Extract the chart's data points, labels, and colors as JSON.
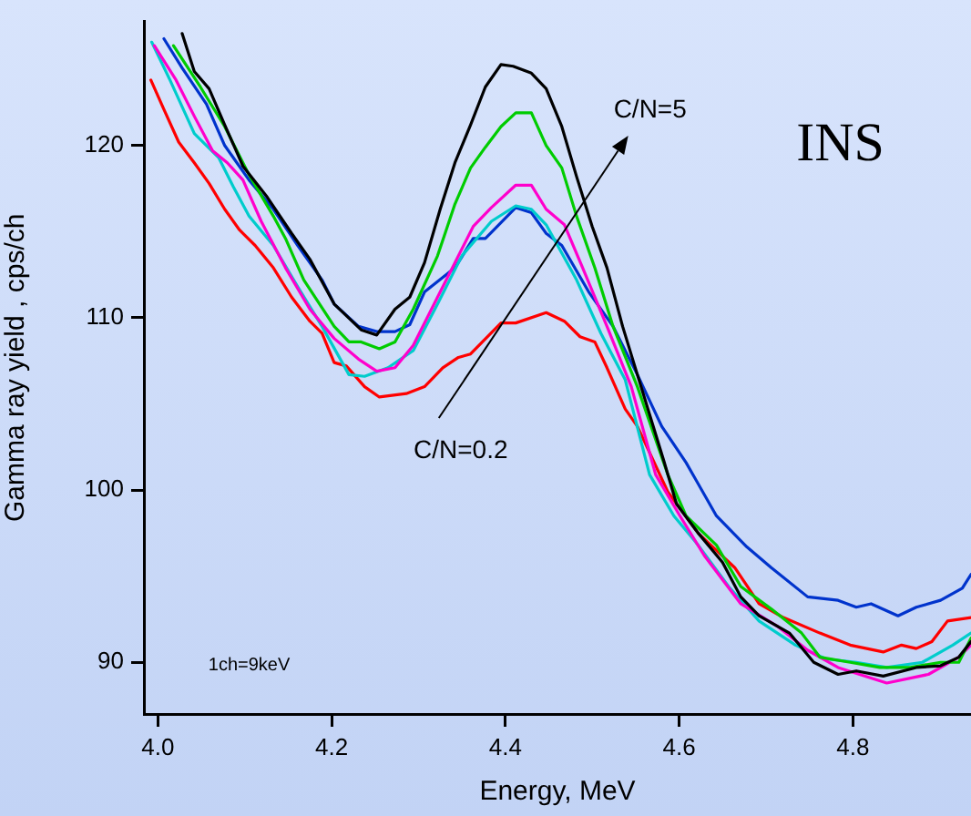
{
  "chart_data": {
    "type": "line",
    "xlabel": "Energy, MeV",
    "ylabel": "Gamma ray yield , cps/ch",
    "xlim": [
      3.984,
      4.936
    ],
    "ylim": [
      87,
      127.2
    ],
    "xticks": [
      {
        "value": 4.0,
        "label": "4.0"
      },
      {
        "value": 4.2,
        "label": "4.2"
      },
      {
        "value": 4.4,
        "label": "4.4"
      },
      {
        "value": 4.6,
        "label": "4.6"
      },
      {
        "value": 4.8,
        "label": "4.8"
      }
    ],
    "yticks": [
      90,
      100,
      110,
      120
    ],
    "annotations": [
      "C/N=5",
      "C/N=0.2",
      "INS",
      "1ch=9keV"
    ],
    "series": [
      {
        "color": "#000000",
        "x": [
          4.028,
          4.042,
          4.059,
          4.077,
          4.098,
          4.126,
          4.154,
          4.175,
          4.203,
          4.234,
          4.252,
          4.273,
          4.29,
          4.307,
          4.325,
          4.342,
          4.36,
          4.377,
          4.395,
          4.409,
          4.43,
          4.447,
          4.465,
          4.482,
          4.5,
          4.517,
          4.535,
          4.552,
          4.583,
          4.597,
          4.622,
          4.65,
          4.671,
          4.692,
          4.727,
          4.755,
          4.783,
          4.804,
          4.835,
          4.873,
          4.901,
          4.922,
          4.936
        ],
        "values": [
          126.5,
          124.3,
          123.3,
          121.2,
          118.8,
          117.0,
          114.9,
          113.4,
          110.8,
          109.3,
          109.0,
          110.5,
          111.2,
          113.2,
          116.3,
          119.0,
          121.2,
          123.4,
          124.7,
          124.6,
          124.2,
          123.3,
          121.1,
          118.2,
          115.3,
          112.9,
          109.5,
          106.7,
          101.6,
          99.2,
          97.5,
          95.8,
          93.8,
          92.7,
          91.7,
          90.0,
          89.3,
          89.5,
          89.2,
          89.7,
          89.8,
          90.3,
          91.2
        ]
      },
      {
        "color": "#00cc00",
        "x": [
          4.018,
          4.049,
          4.077,
          4.105,
          4.133,
          4.147,
          4.168,
          4.203,
          4.22,
          4.234,
          4.255,
          4.273,
          4.294,
          4.322,
          4.342,
          4.36,
          4.377,
          4.395,
          4.412,
          4.43,
          4.447,
          4.465,
          4.482,
          4.503,
          4.524,
          4.552,
          4.587,
          4.608,
          4.643,
          4.671,
          4.706,
          4.741,
          4.762,
          4.797,
          4.831,
          4.866,
          4.901,
          4.922,
          4.936
        ],
        "values": [
          125.8,
          123.4,
          121.1,
          118.3,
          115.9,
          114.6,
          112.2,
          109.5,
          108.6,
          108.6,
          108.2,
          108.6,
          110.5,
          113.6,
          116.6,
          118.7,
          119.9,
          121.1,
          121.9,
          121.9,
          120.0,
          118.7,
          115.9,
          112.9,
          109.5,
          106.0,
          100.9,
          98.5,
          96.8,
          94.4,
          93.1,
          91.7,
          90.3,
          90.0,
          89.7,
          89.7,
          90.0,
          90.0,
          91.4
        ]
      },
      {
        "color": "#ff00cc",
        "x": [
          3.996,
          4.021,
          4.042,
          4.063,
          4.08,
          4.098,
          4.119,
          4.147,
          4.175,
          4.203,
          4.231,
          4.252,
          4.273,
          4.294,
          4.322,
          4.342,
          4.363,
          4.384,
          4.412,
          4.43,
          4.447,
          4.468,
          4.489,
          4.517,
          4.545,
          4.573,
          4.601,
          4.629,
          4.671,
          4.713,
          4.748,
          4.783,
          4.839,
          4.887,
          4.922,
          4.936
        ],
        "values": [
          125.8,
          123.8,
          121.7,
          119.7,
          119.0,
          118.0,
          115.6,
          112.9,
          110.5,
          108.8,
          107.6,
          106.9,
          107.1,
          108.4,
          111.2,
          113.2,
          115.3,
          116.4,
          117.7,
          117.7,
          116.3,
          115.4,
          112.9,
          109.5,
          106.0,
          100.9,
          98.5,
          96.2,
          93.4,
          92.1,
          90.7,
          89.7,
          88.8,
          89.3,
          90.3,
          91.0
        ]
      },
      {
        "color": "#00cccc",
        "x": [
          3.993,
          4.014,
          4.042,
          4.07,
          4.087,
          4.105,
          4.133,
          4.161,
          4.189,
          4.22,
          4.238,
          4.265,
          4.294,
          4.322,
          4.35,
          4.384,
          4.412,
          4.43,
          4.447,
          4.482,
          4.51,
          4.538,
          4.566,
          4.594,
          4.622,
          4.657,
          4.692,
          4.734,
          4.769,
          4.804,
          4.839,
          4.88,
          4.915,
          4.936
        ],
        "values": [
          126.0,
          123.8,
          120.7,
          119.3,
          117.6,
          115.9,
          114.2,
          111.8,
          109.5,
          106.7,
          106.6,
          107.1,
          108.1,
          110.8,
          113.6,
          115.6,
          116.5,
          116.3,
          115.4,
          112.2,
          109.1,
          106.4,
          100.9,
          98.5,
          96.8,
          94.4,
          92.4,
          91.0,
          90.2,
          90.0,
          89.7,
          90.0,
          91.0,
          91.7
        ]
      },
      {
        "color": "#0033cc",
        "x": [
          4.007,
          4.028,
          4.056,
          4.077,
          4.105,
          4.133,
          4.161,
          4.189,
          4.203,
          4.231,
          4.252,
          4.273,
          4.29,
          4.307,
          4.342,
          4.363,
          4.377,
          4.412,
          4.43,
          4.447,
          4.465,
          4.496,
          4.524,
          4.552,
          4.58,
          4.608,
          4.643,
          4.678,
          4.706,
          4.748,
          4.783,
          4.804,
          4.821,
          4.852,
          4.873,
          4.901,
          4.926,
          4.936
        ],
        "values": [
          126.2,
          124.5,
          122.4,
          120.0,
          118.0,
          116.3,
          114.2,
          112.2,
          110.8,
          109.5,
          109.2,
          109.2,
          109.6,
          111.5,
          112.9,
          114.6,
          114.6,
          116.4,
          116.1,
          114.9,
          114.2,
          111.5,
          109.5,
          106.7,
          103.7,
          101.6,
          98.5,
          96.7,
          95.5,
          93.8,
          93.6,
          93.2,
          93.4,
          92.7,
          93.2,
          93.6,
          94.3,
          95.1
        ]
      },
      {
        "color": "#ff0000",
        "x": [
          3.992,
          4.007,
          4.024,
          4.042,
          4.059,
          4.077,
          4.094,
          4.112,
          4.133,
          4.154,
          4.175,
          4.189,
          4.203,
          4.217,
          4.238,
          4.255,
          4.286,
          4.307,
          4.328,
          4.346,
          4.36,
          4.395,
          4.412,
          4.447,
          4.468,
          4.486,
          4.503,
          4.517,
          4.538,
          4.552,
          4.587,
          4.622,
          4.643,
          4.664,
          4.692,
          4.72,
          4.762,
          4.797,
          4.835,
          4.856,
          4.873,
          4.891,
          4.909,
          4.936
        ],
        "values": [
          123.8,
          122.1,
          120.2,
          119.0,
          117.8,
          116.3,
          115.1,
          114.2,
          112.9,
          111.2,
          109.8,
          109.1,
          107.4,
          107.2,
          106.0,
          105.4,
          105.6,
          106.0,
          107.1,
          107.7,
          107.9,
          109.7,
          109.7,
          110.3,
          109.8,
          108.9,
          108.6,
          107.1,
          104.7,
          103.7,
          99.9,
          97.5,
          96.5,
          95.5,
          93.4,
          92.6,
          91.7,
          91.0,
          90.6,
          91.0,
          90.8,
          91.2,
          92.4,
          92.6
        ]
      }
    ]
  }
}
